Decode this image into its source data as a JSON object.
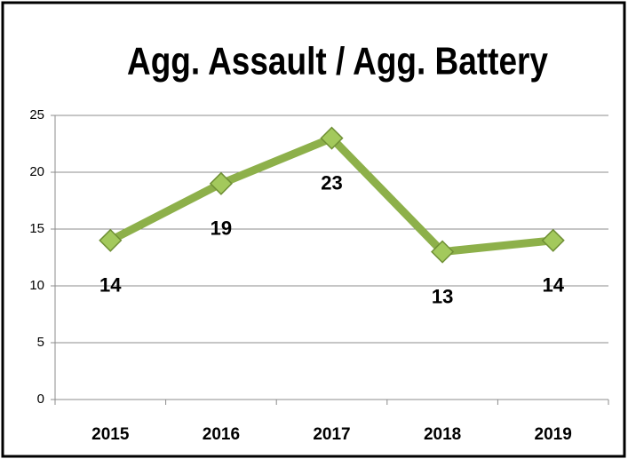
{
  "chart_data": {
    "type": "line",
    "title": "Agg. Assault / Agg. Battery",
    "categories": [
      "2015",
      "2016",
      "2017",
      "2018",
      "2019"
    ],
    "series": [
      {
        "name": "Agg. Assault / Agg. Battery",
        "color": "#8db04a",
        "values": [
          14,
          19,
          23,
          13,
          14
        ]
      }
    ],
    "ylim": [
      0,
      25
    ],
    "yticks": [
      0,
      5,
      10,
      15,
      20,
      25
    ],
    "grid": true,
    "legend": false
  }
}
